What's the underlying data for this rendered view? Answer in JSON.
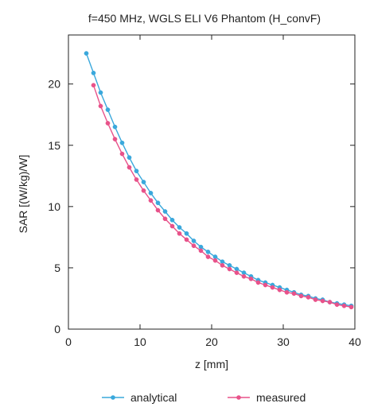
{
  "chart_data": {
    "type": "line",
    "title": "f=450 MHz, WGLS ELI V6 Phantom (H_convF)",
    "xlabel": "z [mm]",
    "ylabel": "SAR [(W/kg)/W]",
    "xlim": [
      0,
      40
    ],
    "ylim": [
      0,
      24
    ],
    "xticks": [
      0,
      10,
      20,
      30,
      40
    ],
    "yticks": [
      0,
      5,
      10,
      15,
      20
    ],
    "grid": false,
    "legend_position": "bottom",
    "series": [
      {
        "name": "analytical",
        "color": "#3aa8dc",
        "marker": "dot",
        "x": [
          2.5,
          3.5,
          4.5,
          5.5,
          6.5,
          7.5,
          8.5,
          9.5,
          10.5,
          11.5,
          12.5,
          13.5,
          14.5,
          15.5,
          16.5,
          17.5,
          18.5,
          19.5,
          20.5,
          21.5,
          22.5,
          23.5,
          24.5,
          25.5,
          26.5,
          27.5,
          28.5,
          29.5,
          30.5,
          31.5,
          32.5,
          33.5,
          34.5,
          35.5,
          36.5,
          37.5,
          38.5,
          39.5
        ],
        "y": [
          22.5,
          20.9,
          19.3,
          17.9,
          16.5,
          15.2,
          14.0,
          12.9,
          12.0,
          11.1,
          10.3,
          9.6,
          8.9,
          8.3,
          7.8,
          7.2,
          6.7,
          6.3,
          5.9,
          5.5,
          5.2,
          4.9,
          4.6,
          4.3,
          4.0,
          3.8,
          3.6,
          3.4,
          3.2,
          3.0,
          2.8,
          2.7,
          2.5,
          2.4,
          2.2,
          2.1,
          2.0,
          1.9
        ]
      },
      {
        "name": "measured",
        "color": "#e8528a",
        "marker": "dot",
        "x": [
          3.5,
          4.5,
          5.5,
          6.5,
          7.5,
          8.5,
          9.5,
          10.5,
          11.5,
          12.5,
          13.5,
          14.5,
          15.5,
          16.5,
          17.5,
          18.5,
          19.5,
          20.5,
          21.5,
          22.5,
          23.5,
          24.5,
          25.5,
          26.5,
          27.5,
          28.5,
          29.5,
          30.5,
          31.5,
          32.5,
          33.5,
          34.5,
          35.5,
          36.5,
          37.5,
          38.5,
          39.5
        ],
        "y": [
          19.9,
          18.2,
          16.8,
          15.5,
          14.3,
          13.2,
          12.2,
          11.3,
          10.5,
          9.7,
          9.0,
          8.4,
          7.8,
          7.3,
          6.8,
          6.4,
          5.9,
          5.6,
          5.2,
          4.9,
          4.6,
          4.3,
          4.1,
          3.8,
          3.6,
          3.4,
          3.2,
          3.0,
          2.9,
          2.7,
          2.6,
          2.4,
          2.3,
          2.2,
          2.0,
          1.9,
          1.8
        ]
      }
    ]
  }
}
